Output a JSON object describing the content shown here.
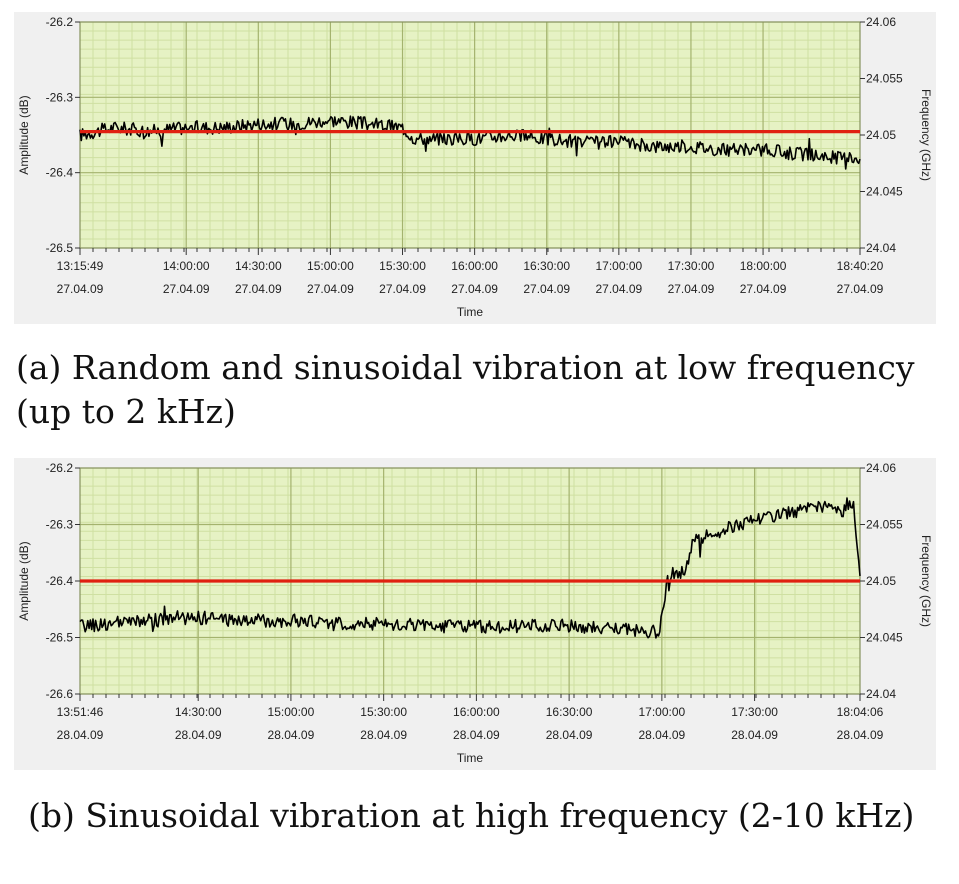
{
  "chart_data": [
    {
      "type": "line",
      "ylabel": "Amplitude (dB)",
      "y2label": "Frequency (GHz)",
      "xlabel": "Time",
      "ylim": [
        -26.5,
        -26.2
      ],
      "y_ticks": [
        "-26.2",
        "-26.3",
        "-26.4",
        "-26.5"
      ],
      "y2lim": [
        24.04,
        24.06
      ],
      "y2_ticks": [
        "24.06",
        "24.055",
        "24.05",
        "24.045",
        "24.04"
      ],
      "x_range": [
        "13:15:49 27.04.09",
        "18:40:20 27.04.09"
      ],
      "x_ticks": [
        {
          "time": "13:15:49",
          "date": "27.04.09"
        },
        {
          "time": "14:00:00",
          "date": "27.04.09"
        },
        {
          "time": "14:30:00",
          "date": "27.04.09"
        },
        {
          "time": "15:00:00",
          "date": "27.04.09"
        },
        {
          "time": "15:30:00",
          "date": "27.04.09"
        },
        {
          "time": "16:00:00",
          "date": "27.04.09"
        },
        {
          "time": "16:30:00",
          "date": "27.04.09"
        },
        {
          "time": "17:00:00",
          "date": "27.04.09"
        },
        {
          "time": "17:30:00",
          "date": "27.04.09"
        },
        {
          "time": "18:00:00",
          "date": "27.04.09"
        },
        {
          "time": "18:40:20",
          "date": "27.04.09"
        }
      ],
      "grid": true,
      "series": [
        {
          "color": "#000000",
          "axis": "left",
          "x": [
            "13:15:49",
            "13:30:00",
            "13:45:00",
            "14:00:00",
            "14:15:00",
            "14:30:00",
            "14:45:00",
            "15:00:00",
            "15:15:00",
            "15:30:00",
            "15:35:00",
            "16:00:00",
            "16:15:00",
            "16:30:00",
            "16:45:00",
            "17:00:00",
            "17:15:00",
            "17:30:00",
            "17:45:00",
            "18:00:00",
            "18:15:00",
            "18:30:00",
            "18:40:20"
          ],
          "values": [
            -26.35,
            -26.34,
            -26.345,
            -26.34,
            -26.34,
            -26.335,
            -26.335,
            -26.33,
            -26.335,
            -26.34,
            -26.355,
            -26.355,
            -26.35,
            -26.355,
            -26.36,
            -26.36,
            -26.365,
            -26.365,
            -26.37,
            -26.37,
            -26.375,
            -26.38,
            -26.38
          ]
        },
        {
          "color": "#e02010",
          "axis": "right",
          "x": [
            "13:15:49",
            "18:40:20"
          ],
          "values": [
            24.0503,
            24.0503
          ]
        }
      ]
    },
    {
      "type": "line",
      "ylabel": "Amplitude (dB)",
      "y2label": "Frequency (GHz)",
      "xlabel": "Time",
      "ylim": [
        -26.6,
        -26.2
      ],
      "y_ticks": [
        "-26.2",
        "-26.3",
        "-26.4",
        "-26.5",
        "-26.6"
      ],
      "y2lim": [
        24.04,
        24.06
      ],
      "y2_ticks": [
        "24.06",
        "24.055",
        "24.05",
        "24.045",
        "24.04"
      ],
      "x_range": [
        "13:51:46 28.04.09",
        "18:04:06 28.04.09"
      ],
      "x_ticks": [
        {
          "time": "13:51:46",
          "date": "28.04.09"
        },
        {
          "time": "14:30:00",
          "date": "28.04.09"
        },
        {
          "time": "15:00:00",
          "date": "28.04.09"
        },
        {
          "time": "15:30:00",
          "date": "28.04.09"
        },
        {
          "time": "16:00:00",
          "date": "28.04.09"
        },
        {
          "time": "16:30:00",
          "date": "28.04.09"
        },
        {
          "time": "17:00:00",
          "date": "28.04.09"
        },
        {
          "time": "17:30:00",
          "date": "28.04.09"
        },
        {
          "time": "18:04:06",
          "date": "28.04.09"
        }
      ],
      "grid": true,
      "series": [
        {
          "color": "#000000",
          "axis": "left",
          "x": [
            "13:51:46",
            "14:15:00",
            "14:30:00",
            "14:45:00",
            "15:00:00",
            "15:15:00",
            "15:30:00",
            "15:45:00",
            "16:00:00",
            "16:15:00",
            "16:30:00",
            "16:45:00",
            "16:59:00",
            "17:02:00",
            "17:08:00",
            "17:10:00",
            "17:15:00",
            "17:30:00",
            "17:45:00",
            "18:00:00",
            "18:02:00",
            "18:04:06"
          ],
          "values": [
            -26.48,
            -26.47,
            -26.465,
            -26.47,
            -26.47,
            -26.475,
            -26.475,
            -26.48,
            -26.48,
            -26.48,
            -26.48,
            -26.485,
            -26.49,
            -26.39,
            -26.38,
            -26.33,
            -26.32,
            -26.29,
            -26.275,
            -26.265,
            -26.27,
            -26.4
          ]
        },
        {
          "color": "#e02010",
          "axis": "right",
          "x": [
            "13:51:46",
            "18:04:06"
          ],
          "values": [
            24.05,
            24.05
          ]
        }
      ]
    }
  ],
  "captions": {
    "a_line1": "(a) Random and sinusoidal vibration at low frequency",
    "a_line2": "(up to 2 kHz)",
    "b": "(b) Sinusoidal vibration at high frequency (2-10 kHz)"
  },
  "colors": {
    "plot_background": "#e6f2c4",
    "grid_major": "#a4b36e",
    "grid_minor": "#cfe0a2",
    "data_line": "#000000",
    "reference_line": "#e02010"
  }
}
